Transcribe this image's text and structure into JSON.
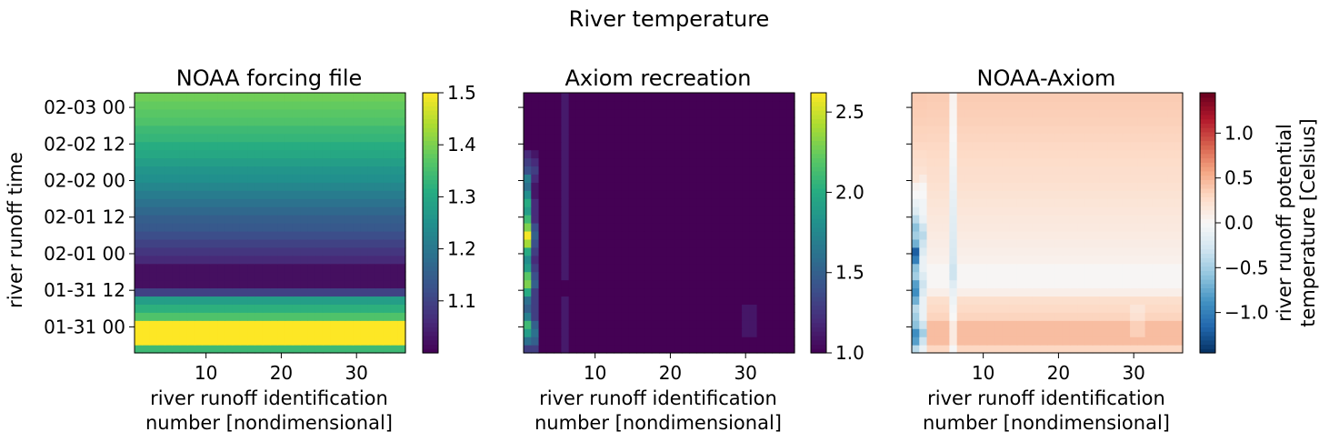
{
  "suptitle": "River temperature",
  "chart_data": [
    {
      "type": "heatmap",
      "title": "NOAA forcing file",
      "xlabel": [
        "river runoff identification",
        "number [nondimensional]"
      ],
      "ylabel": "river runoff time",
      "xlim": [
        0.5,
        36.5
      ],
      "x_ticks": [
        10,
        20,
        30
      ],
      "y_tick_labels": [
        "01-31 00",
        "01-31 12",
        "02-01 00",
        "02-01 12",
        "02-02 00",
        "02-02 12",
        "02-03 00"
      ],
      "colormap": "viridis",
      "colorbar": {
        "range": [
          1.0,
          1.5
        ],
        "ticks": [
          1.1,
          1.2,
          1.3,
          1.4,
          1.5
        ],
        "label": ""
      },
      "rows_bottom_to_top": [
        1.34,
        1.5,
        1.5,
        1.5,
        1.36,
        1.32,
        1.28,
        1.1,
        1.02,
        1.02,
        1.02,
        1.06,
        1.08,
        1.1,
        1.12,
        1.14,
        1.15,
        1.17,
        1.19,
        1.21,
        1.23,
        1.25,
        1.26,
        1.28,
        1.3,
        1.31,
        1.33,
        1.34,
        1.36,
        1.37,
        1.38,
        1.39
      ]
    },
    {
      "type": "heatmap",
      "title": "Axiom recreation",
      "xlabel": [
        "river runoff identification",
        "number [nondimensional]"
      ],
      "ylabel": "",
      "xlim": [
        0.5,
        36.5
      ],
      "x_ticks": [
        10,
        20,
        30
      ],
      "colormap": "viridis",
      "colorbar": {
        "range": [
          1.0,
          2.62
        ],
        "ticks": [
          1.0,
          1.5,
          2.0,
          2.5
        ],
        "label": ""
      },
      "column_1_bottom_to_top": [
        1.3,
        1.6,
        1.9,
        2.1,
        1.7,
        1.5,
        1.6,
        2.0,
        2.3,
        2.2,
        1.9,
        1.8,
        2.0,
        2.4,
        2.6,
        2.3,
        2.1,
        1.9,
        2.0,
        1.8,
        1.6,
        1.7,
        1.4,
        1.3,
        1.2,
        1.0,
        1.0,
        1.0,
        1.0,
        1.0,
        1.0,
        1.0
      ],
      "column_2_bottom_to_top": [
        1.3,
        1.5,
        1.6,
        1.5,
        1.3,
        1.3,
        1.3,
        1.3,
        1.5,
        1.4,
        1.3,
        1.2,
        1.3,
        1.4,
        1.5,
        1.4,
        1.2,
        1.2,
        1.2,
        1.1,
        1.1,
        1.2,
        1.3,
        1.2,
        1.1,
        1.0,
        1.0,
        1.0,
        1.0,
        1.0,
        1.0,
        1.0
      ],
      "column_6_value": 1.12,
      "column_30_31_value": 1.1
    },
    {
      "type": "heatmap",
      "title": "NOAA-Axiom",
      "xlabel": [
        "river runoff identification",
        "number [nondimensional]"
      ],
      "ylabel": "",
      "xlim": [
        0.5,
        36.5
      ],
      "x_ticks": [
        10,
        20,
        30
      ],
      "colormap": "RdBu_r",
      "colorbar": {
        "range": [
          -1.45,
          1.45
        ],
        "ticks": [
          -1.0,
          -0.5,
          0.0,
          0.5,
          1.0
        ],
        "tick_labels": [
          "−1.0",
          "−0.5",
          "0.0",
          "0.5",
          "1.0"
        ],
        "label": [
          "river runoff potential",
          "temperature [Celsius]"
        ]
      },
      "column_1_bottom_to_top": [
        -0.4,
        -0.8,
        -0.9,
        -0.6,
        -0.5,
        -0.4,
        -0.7,
        -0.9,
        -0.8,
        -0.5,
        -0.6,
        -1.0,
        -1.2,
        -0.7,
        -0.5,
        -0.6,
        -0.4,
        -0.2,
        -0.1,
        0.0,
        0.05,
        0.2,
        0.22,
        0.25,
        0.27,
        0.3,
        0.32,
        0.33,
        0.35,
        0.36,
        0.37,
        0.38
      ],
      "column_2_bottom_to_top": [
        -0.1,
        -0.3,
        -0.5,
        -0.3,
        -0.1,
        -0.1,
        -0.1,
        -0.2,
        -0.3,
        -0.2,
        -0.1,
        -0.1,
        -0.2,
        -0.3,
        -0.4,
        -0.3,
        -0.1,
        -0.05,
        -0.05,
        0.0,
        0.02,
        0.12,
        0.22,
        0.25,
        0.27,
        0.3,
        0.32,
        0.33,
        0.35,
        0.36,
        0.37,
        0.38
      ],
      "column_6_offset": -0.12,
      "column_30_31_offset": -0.1
    }
  ]
}
